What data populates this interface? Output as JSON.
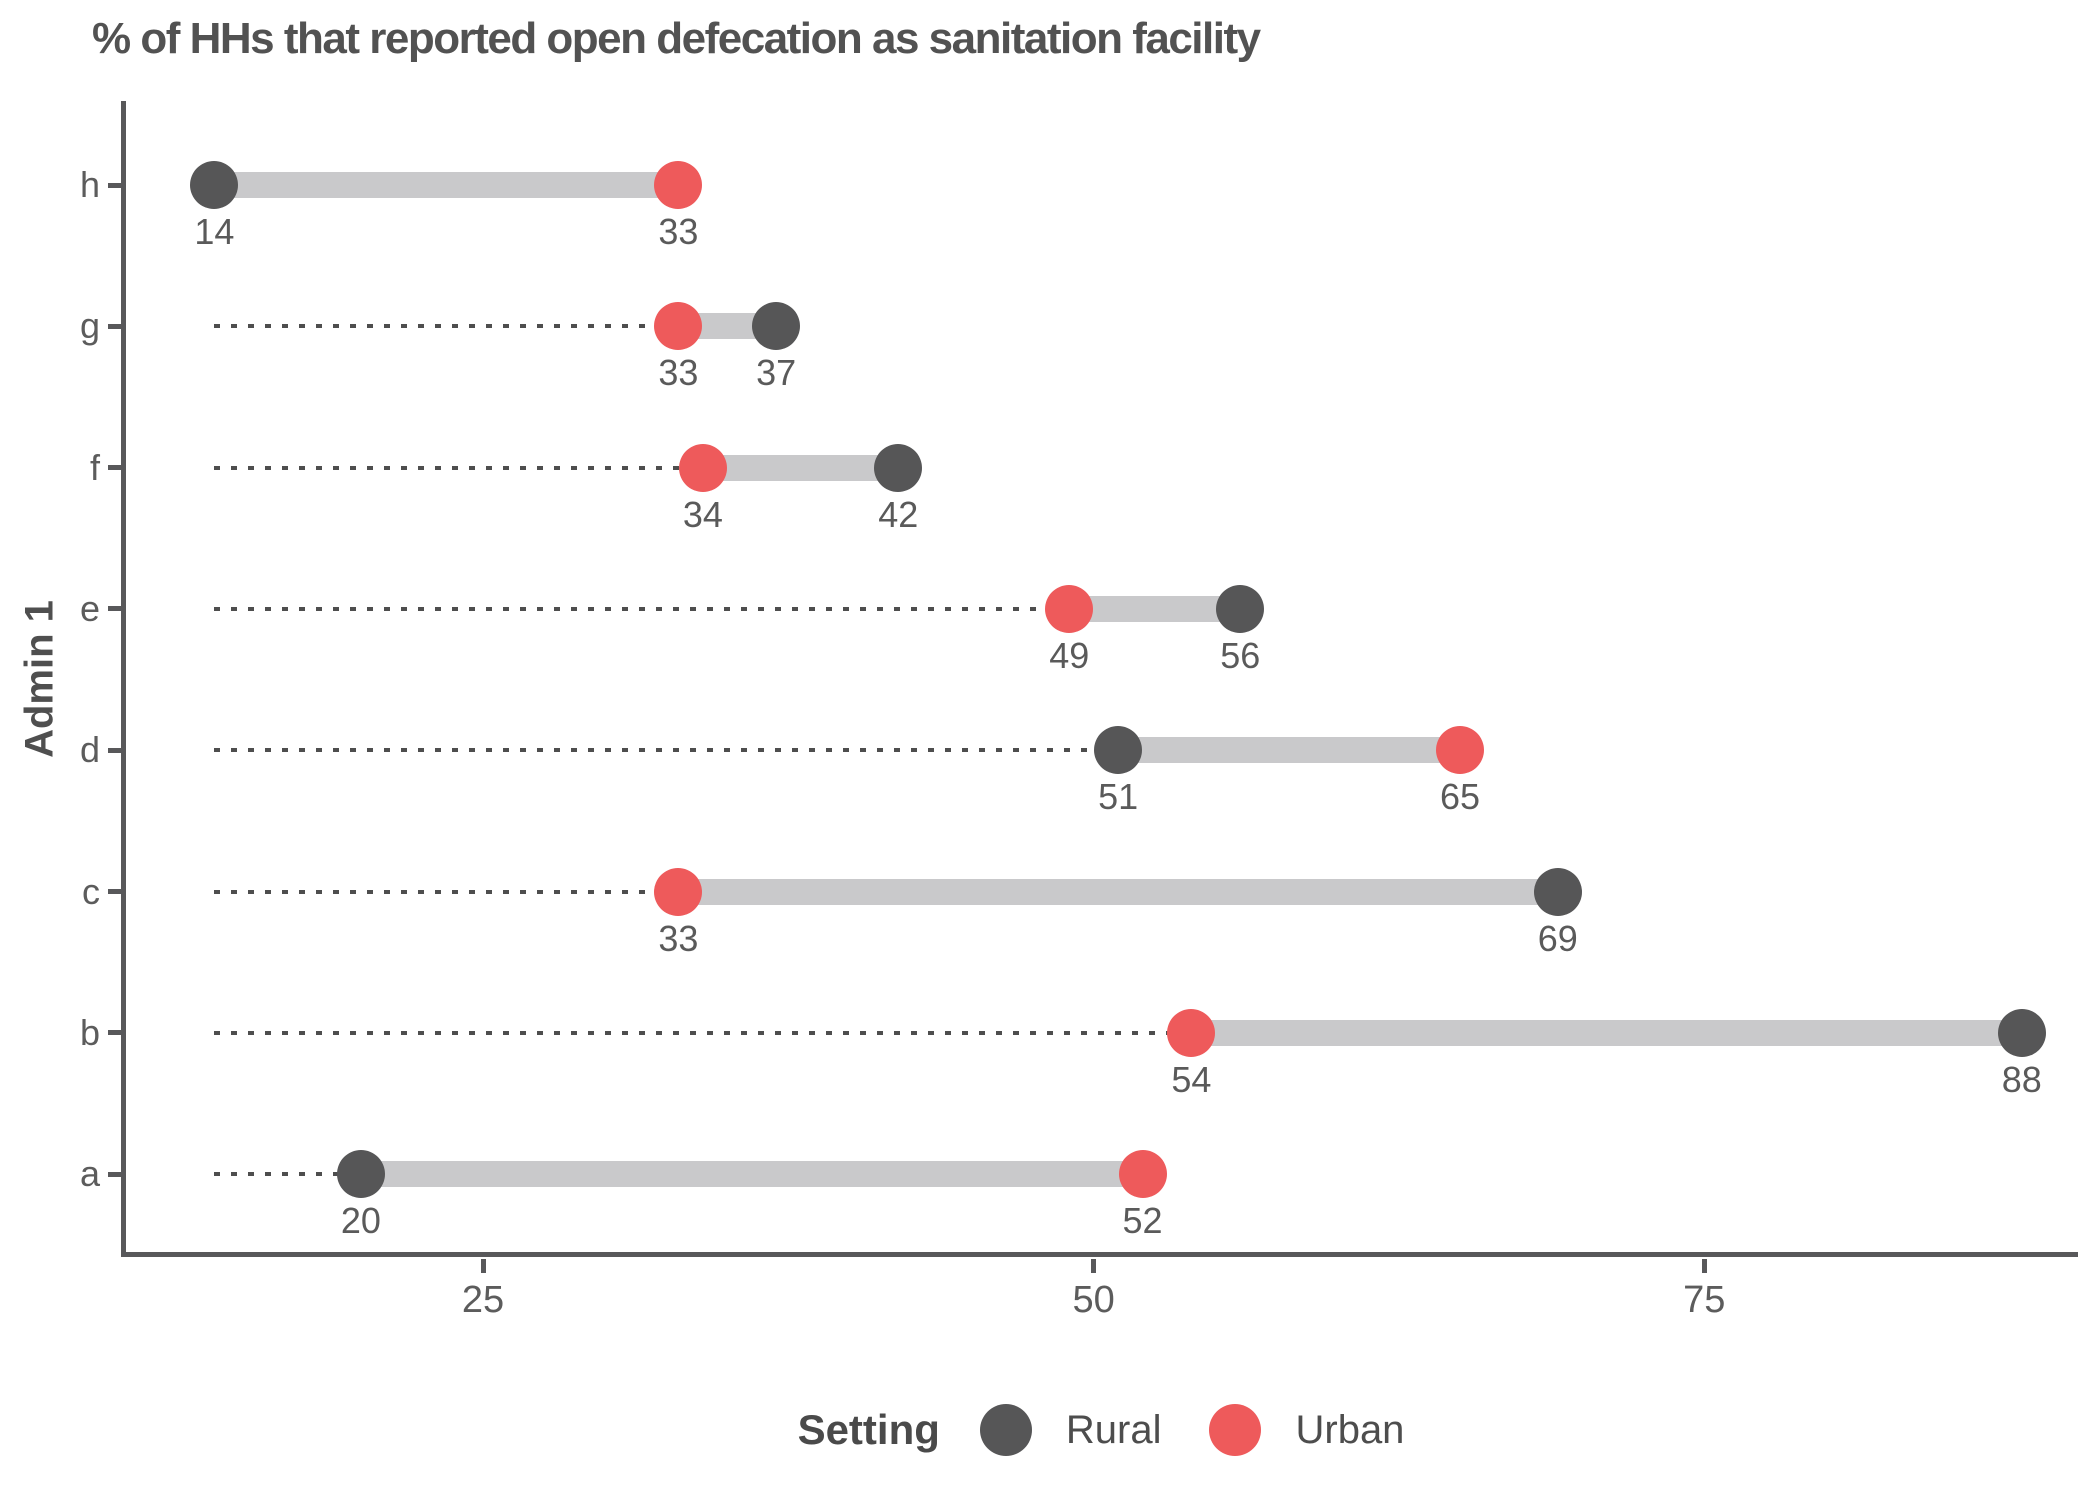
{
  "title": "% of HHs that reported open defecation as sanitation facility",
  "y_axis_label": "Admin 1",
  "legend": {
    "title": "Setting",
    "items": [
      {
        "label": "Rural",
        "color": "#565657"
      },
      {
        "label": "Urban",
        "color": "#ee5a5b"
      }
    ]
  },
  "chart_data": {
    "type": "dumbbell",
    "title": "% of HHs that reported open defecation as sanitation facility",
    "xlabel": "",
    "ylabel": "Admin 1",
    "categories": [
      "h",
      "g",
      "f",
      "e",
      "d",
      "c",
      "b",
      "a"
    ],
    "series": [
      {
        "name": "Rural",
        "values": [
          14,
          37,
          42,
          56,
          51,
          69,
          88,
          20
        ]
      },
      {
        "name": "Urban",
        "values": [
          33,
          33,
          34,
          49,
          65,
          33,
          54,
          52
        ]
      }
    ],
    "x_ticks": [
      25,
      50,
      75
    ],
    "x_domain": [
      10.3,
      90.3
    ],
    "leader_origin": 14,
    "grid": "off",
    "legend_position": "bottom",
    "colors": {
      "rural": "#565657",
      "urban": "#ee5a5b",
      "connector": "#c9c9cb",
      "leader": "#4e4e4e",
      "axis": "#58585a",
      "value_text": "#5a5a5a"
    }
  }
}
